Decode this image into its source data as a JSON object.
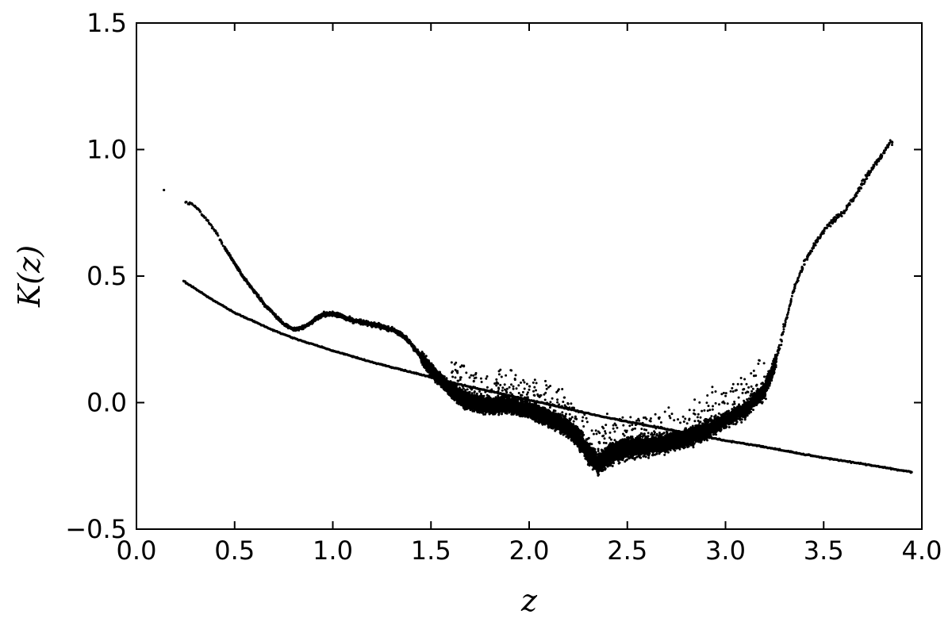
{
  "chart_data": {
    "type": "scatter",
    "title": "",
    "xlabel": "z",
    "ylabel": "K(z)",
    "xlim": [
      0.0,
      4.0
    ],
    "ylim": [
      -0.5,
      1.5
    ],
    "xticks": [
      "0.0",
      "0.5",
      "1.0",
      "1.5",
      "2.0",
      "2.5",
      "3.0",
      "3.5",
      "4.0"
    ],
    "yticks": [
      "−0.5",
      "0.0",
      "0.5",
      "1.0",
      "1.5"
    ],
    "grid": false,
    "legend": "none",
    "marker_color": "#000000",
    "series": [
      {
        "kind": "scatter-band",
        "points": [
          [
            0.14,
            0.84
          ],
          [
            0.25,
            0.79
          ],
          [
            0.28,
            0.785
          ],
          [
            0.32,
            0.76
          ],
          [
            0.36,
            0.72
          ],
          [
            0.4,
            0.68
          ],
          [
            0.45,
            0.61
          ],
          [
            0.5,
            0.55
          ],
          [
            0.55,
            0.49
          ],
          [
            0.6,
            0.44
          ],
          [
            0.65,
            0.39
          ],
          [
            0.7,
            0.35
          ],
          [
            0.75,
            0.31
          ],
          [
            0.8,
            0.29
          ],
          [
            0.84,
            0.295
          ],
          [
            0.88,
            0.31
          ],
          [
            0.92,
            0.335
          ],
          [
            0.96,
            0.35
          ],
          [
            1.0,
            0.35
          ],
          [
            1.05,
            0.34
          ],
          [
            1.1,
            0.325
          ],
          [
            1.2,
            0.31
          ],
          [
            1.3,
            0.29
          ],
          [
            1.35,
            0.27
          ],
          [
            1.4,
            0.23
          ],
          [
            1.45,
            0.18
          ],
          [
            1.5,
            0.13
          ],
          [
            1.55,
            0.09
          ],
          [
            1.6,
            0.05
          ],
          [
            1.65,
            0.02
          ],
          [
            1.7,
            0.0
          ],
          [
            1.8,
            -0.01
          ],
          [
            1.9,
            -0.01
          ],
          [
            2.0,
            -0.03
          ],
          [
            2.1,
            -0.06
          ],
          [
            2.2,
            -0.1
          ],
          [
            2.25,
            -0.14
          ],
          [
            2.3,
            -0.2
          ],
          [
            2.35,
            -0.24
          ],
          [
            2.4,
            -0.21
          ],
          [
            2.45,
            -0.19
          ],
          [
            2.5,
            -0.18
          ],
          [
            2.6,
            -0.17
          ],
          [
            2.7,
            -0.16
          ],
          [
            2.8,
            -0.14
          ],
          [
            2.9,
            -0.11
          ],
          [
            3.0,
            -0.07
          ],
          [
            3.1,
            -0.03
          ],
          [
            3.2,
            0.05
          ],
          [
            3.25,
            0.15
          ],
          [
            3.3,
            0.3
          ],
          [
            3.35,
            0.45
          ],
          [
            3.4,
            0.55
          ],
          [
            3.45,
            0.62
          ],
          [
            3.5,
            0.68
          ],
          [
            3.55,
            0.72
          ],
          [
            3.6,
            0.75
          ],
          [
            3.65,
            0.8
          ],
          [
            3.7,
            0.87
          ],
          [
            3.75,
            0.93
          ],
          [
            3.8,
            0.98
          ],
          [
            3.84,
            1.03
          ]
        ]
      },
      {
        "kind": "smooth-curve",
        "points": [
          [
            0.24,
            0.48
          ],
          [
            0.3,
            0.45
          ],
          [
            0.4,
            0.4
          ],
          [
            0.5,
            0.355
          ],
          [
            0.6,
            0.32
          ],
          [
            0.7,
            0.285
          ],
          [
            0.8,
            0.255
          ],
          [
            0.9,
            0.23
          ],
          [
            1.0,
            0.205
          ],
          [
            1.2,
            0.16
          ],
          [
            1.4,
            0.12
          ],
          [
            1.6,
            0.08
          ],
          [
            1.8,
            0.045
          ],
          [
            2.0,
            0.01
          ],
          [
            2.2,
            -0.025
          ],
          [
            2.4,
            -0.06
          ],
          [
            2.6,
            -0.09
          ],
          [
            2.8,
            -0.12
          ],
          [
            3.0,
            -0.15
          ],
          [
            3.2,
            -0.175
          ],
          [
            3.4,
            -0.205
          ],
          [
            3.6,
            -0.23
          ],
          [
            3.8,
            -0.255
          ],
          [
            3.95,
            -0.275
          ]
        ]
      }
    ]
  }
}
